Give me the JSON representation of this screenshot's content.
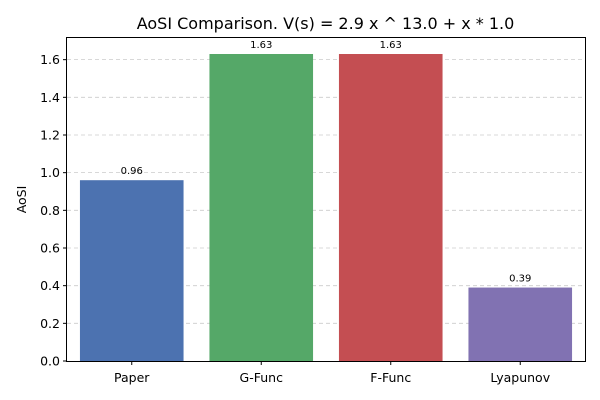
{
  "chart_data": {
    "type": "bar",
    "title": "AoSI Comparison. V(s) = 2.9 x ^ 13.0 + x * 1.0",
    "xlabel": "",
    "ylabel": "AoSI",
    "categories": [
      "Paper",
      "G-Func",
      "F-Func",
      "Lyapunov"
    ],
    "values": [
      0.96,
      1.63,
      1.63,
      0.39
    ],
    "value_labels": [
      "0.96",
      "1.63",
      "1.63",
      "0.39"
    ],
    "colors": [
      "#4c72b0",
      "#55a868",
      "#c44e52",
      "#8172b2"
    ],
    "ylim": [
      0,
      1.715
    ],
    "yticks": [
      0.0,
      0.2,
      0.4,
      0.6,
      0.8,
      1.0,
      1.2,
      1.4,
      1.6
    ],
    "ytick_labels": [
      "0.0",
      "0.2",
      "0.4",
      "0.6",
      "0.8",
      "1.0",
      "1.2",
      "1.4",
      "1.6"
    ],
    "grid": "y-dashed",
    "legend": "none"
  }
}
